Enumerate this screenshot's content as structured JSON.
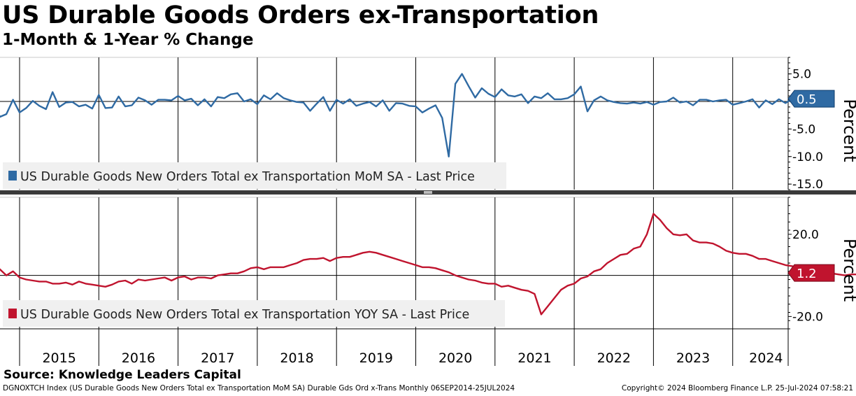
{
  "title": "US Durable Goods Orders ex-Transportation",
  "subtitle": "1-Month & 1-Year % Change",
  "source": "Source: Knowledge Leaders Capital",
  "footer_left": "DGNOXTCH Index (US Durable Goods New Orders Total ex Transportation MoM SA) Durable Gds Ord x-Trans  Monthly 06SEP2014-25JUL2024",
  "footer_right": "Copyright© 2024 Bloomberg Finance L.P.   25-Jul-2024 07:58:21",
  "colors": {
    "mom": "#2f6aa3",
    "yoy": "#c0142e"
  },
  "chart_data": [
    {
      "type": "line",
      "panel": "top",
      "ylabel": "Percent",
      "ylim": [
        -16,
        8
      ],
      "yticks": [
        5.0,
        0,
        -5.0,
        -10.0,
        -15.0
      ],
      "ytick_labels": [
        "5.0",
        "",
        "-5.0",
        "-10.0",
        "-15.0"
      ],
      "grid": "vertical year lines",
      "legend": "US Durable Goods New Orders Total ex Transportation MoM SA - Last Price",
      "legend_position": "bottom-left",
      "last_value_label": "0.5",
      "last_value": 0.5,
      "x_start": "2014-09",
      "x_end": "2024-06",
      "series": [
        {
          "name": "US Durable Goods New Orders Total ex Transportation MoM SA - Last Price",
          "x_start": "2014-09",
          "values": [
            1.0,
            -2.8,
            -2.3,
            0.3,
            -2.0,
            -1.2,
            0.1,
            -0.8,
            -1.4,
            1.7,
            -1.0,
            -0.2,
            -0.1,
            -0.9,
            -0.6,
            -1.3,
            1.2,
            -1.2,
            -1.1,
            0.9,
            -0.9,
            -0.7,
            0.7,
            0.2,
            -0.6,
            0.3,
            0.3,
            0.2,
            1.0,
            0.2,
            0.5,
            -0.7,
            0.4,
            -0.9,
            0.8,
            0.6,
            1.3,
            1.5,
            0.0,
            0.4,
            -0.5,
            1.1,
            0.4,
            1.5,
            0.6,
            0.2,
            -0.1,
            -0.2,
            -1.7,
            -0.4,
            0.8,
            -1.7,
            0.3,
            -0.4,
            0.4,
            -0.8,
            -0.4,
            -0.1,
            -0.9,
            0.2,
            -1.7,
            -0.3,
            -0.4,
            -0.8,
            -0.9,
            -2.0,
            -1.3,
            -0.7,
            -3.0,
            -10.0,
            3.2,
            5.0,
            2.8,
            0.7,
            2.4,
            1.4,
            0.8,
            2.2,
            1.1,
            0.9,
            1.3,
            -0.3,
            0.9,
            0.6,
            1.5,
            0.4,
            0.4,
            0.6,
            1.3,
            2.7,
            -1.8,
            0.2,
            0.9,
            0.2,
            -0.1,
            -0.3,
            -0.4,
            -0.2,
            -0.4,
            -0.1,
            -0.6,
            -0.1,
            0.0,
            0.7,
            -0.2,
            0.0,
            -0.7,
            0.3,
            0.3,
            0.0,
            0.2,
            0.3,
            -0.6,
            -0.3,
            0.0,
            0.4,
            -1.1,
            0.2,
            -0.5,
            0.4,
            -0.3,
            0.5
          ]
        }
      ]
    },
    {
      "type": "line",
      "panel": "bottom",
      "ylabel": "Percent",
      "ylim": [
        -26,
        38
      ],
      "yticks": [
        20.0,
        0,
        -20.0
      ],
      "ytick_labels": [
        "20.0",
        "",
        "-20.0"
      ],
      "grid": "vertical year lines",
      "legend": "US Durable Goods New Orders Total ex Transportation YOY SA - Last Price",
      "legend_position": "bottom-left",
      "last_value_label": "1.2",
      "last_value": 1.2,
      "x_categories": [
        "2015",
        "2016",
        "2017",
        "2018",
        "2019",
        "2020",
        "2021",
        "2022",
        "2023",
        "2024"
      ],
      "series": [
        {
          "name": "US Durable Goods New Orders Total ex Transportation YOY SA - Last Price",
          "x_start": "2014-09",
          "values": [
            6.0,
            3.0,
            0.0,
            2.0,
            -1.0,
            -2.0,
            -2.5,
            -3.0,
            -3.0,
            -4.0,
            -4.0,
            -3.5,
            -4.5,
            -3.0,
            -4.0,
            -4.5,
            -5.0,
            -5.5,
            -4.5,
            -3.0,
            -2.5,
            -4.0,
            -2.0,
            -2.5,
            -2.0,
            -1.5,
            -1.0,
            -2.5,
            -1.0,
            -0.5,
            -2.0,
            -1.0,
            -1.0,
            -1.5,
            0.0,
            0.5,
            1.0,
            1.0,
            2.0,
            3.5,
            4.0,
            3.0,
            4.0,
            4.0,
            4.0,
            5.0,
            6.0,
            7.5,
            8.0,
            8.0,
            8.5,
            7.0,
            8.5,
            9.0,
            9.0,
            10.0,
            11.0,
            11.5,
            11.0,
            10.0,
            9.0,
            8.0,
            7.0,
            6.0,
            5.0,
            4.0,
            4.0,
            3.5,
            2.5,
            1.5,
            0.0,
            -1.0,
            -2.0,
            -2.5,
            -3.5,
            -4.0,
            -4.0,
            -5.5,
            -5.0,
            -6.0,
            -7.0,
            -7.5,
            -9.0,
            -19.0,
            -15.0,
            -11.0,
            -7.0,
            -5.0,
            -4.0,
            -1.5,
            -0.5,
            2.0,
            3.0,
            6.0,
            8.0,
            10.0,
            10.5,
            13.0,
            14.0,
            20.0,
            30.0,
            27.0,
            23.0,
            20.0,
            19.5,
            20.0,
            17.0,
            16.0,
            16.0,
            15.5,
            14.0,
            12.0,
            11.0,
            10.5,
            10.5,
            9.5,
            8.0,
            8.0,
            7.0,
            6.0,
            5.0,
            4.5,
            4.0,
            4.0,
            0.5,
            2.0,
            1.5,
            1.0,
            0.5,
            0.0,
            0.5,
            0.5,
            1.0,
            1.0,
            1.0,
            1.5,
            1.5,
            2.0,
            2.5,
            2.0,
            1.0,
            2.0,
            1.0,
            1.5,
            1.0,
            1.2
          ]
        }
      ]
    }
  ]
}
